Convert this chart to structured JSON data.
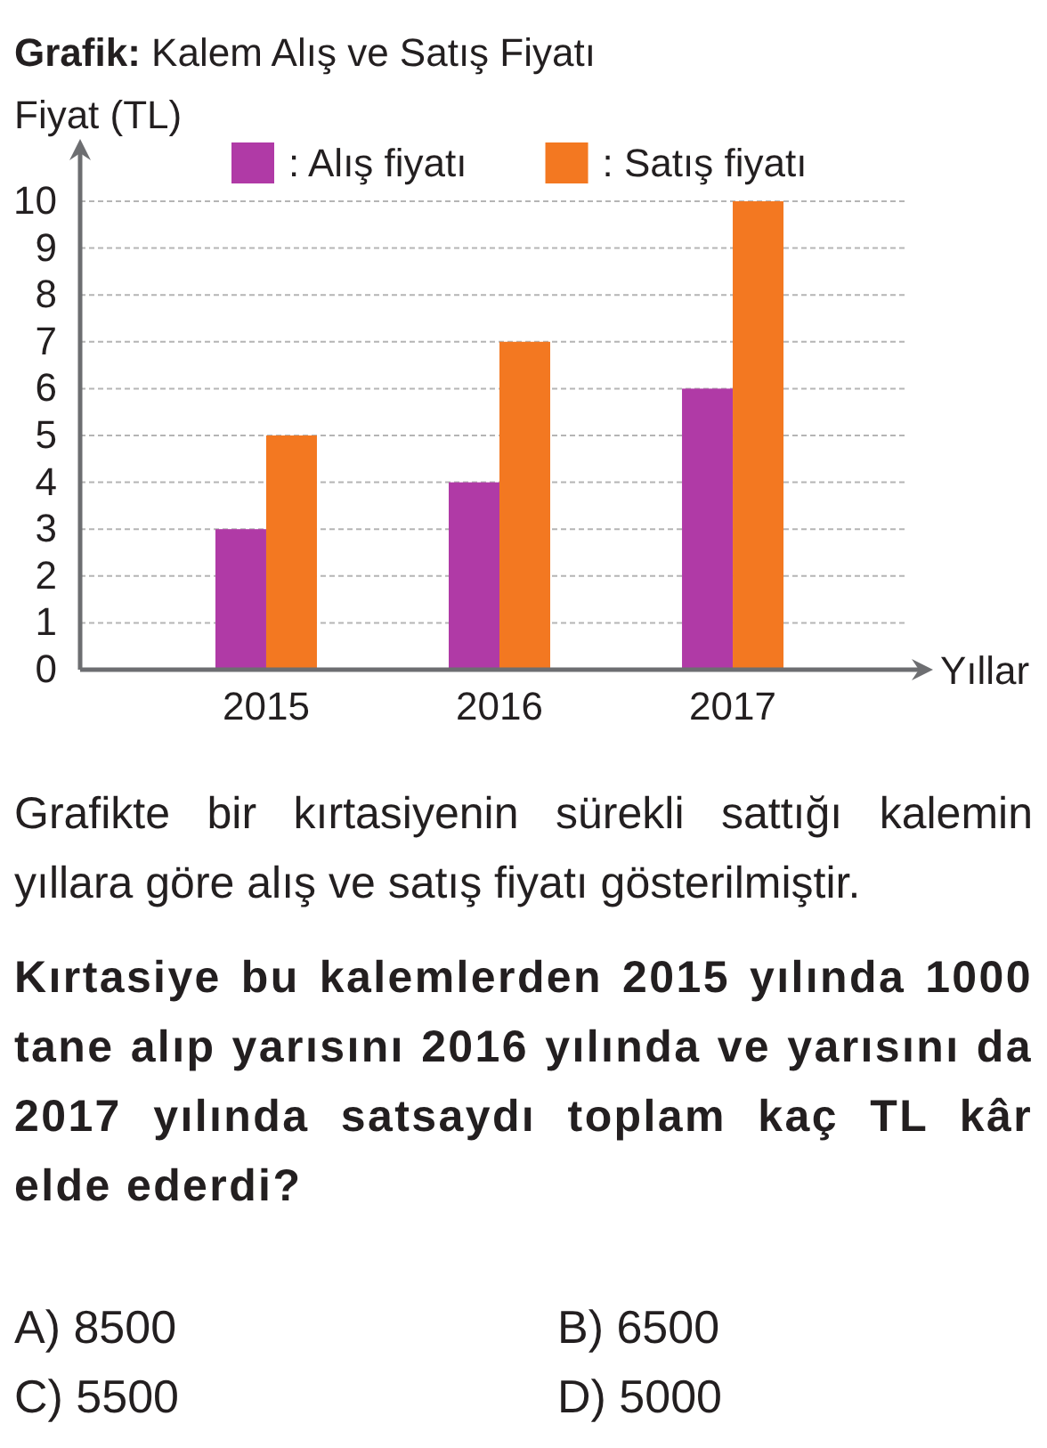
{
  "chart_data": {
    "type": "bar",
    "title": "Grafik: Kalem Alış ve Satış Fiyatı",
    "ylabel": "Fiyat (TL)",
    "xlabel": "Yıllar",
    "categories": [
      "2015",
      "2016",
      "2017"
    ],
    "series": [
      {
        "name": ": Alış fiyatı",
        "color": "#b03aa6",
        "values": [
          3,
          4,
          6
        ]
      },
      {
        "name": ": Satış fiyatı",
        "color": "#f37821",
        "values": [
          5,
          7,
          10
        ]
      }
    ],
    "ylim": [
      0,
      10
    ],
    "yticks": [
      0,
      1,
      2,
      3,
      4,
      5,
      6,
      7,
      8,
      9,
      10
    ],
    "grid": "y",
    "legend": "top",
    "annotations": [
      "Grafikte bir kırtasiyenin sürekli sattığı kalemin yıllara göre alış ve satış fiyatı gösterilmiştir.",
      "Kırtasiye bu kalemlerden 2015 yılında 1000 tane alıp yarısını 2016 yılında ve yarısını da 2017 yılında satsaydı toplam kaç TL kâr elde ederdi?",
      "A) 8500",
      "B) 6500",
      "C) 5500",
      "D) 5000"
    ]
  }
}
